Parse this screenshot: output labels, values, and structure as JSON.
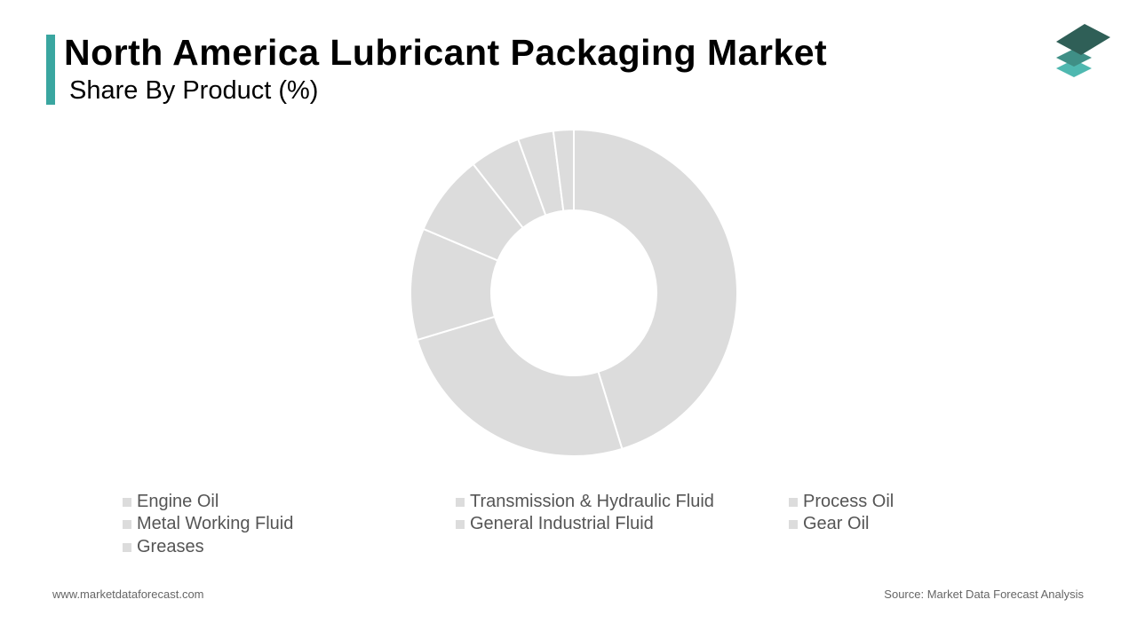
{
  "header": {
    "title": "North America Lubricant Packaging Market",
    "subtitle": "Share By Product (%)"
  },
  "colors": {
    "accent": "#3aa6a0",
    "slice": "#dcdcdc",
    "slice_border": "#ffffff",
    "logo_dark": "#2f5f57",
    "logo_mid": "#3f8f86",
    "logo_light": "#4fb8b0"
  },
  "logo": {
    "icon": "stacked-layers-icon"
  },
  "chart_data": {
    "type": "pie",
    "donut": true,
    "categories": [
      "Engine Oil",
      "Transmission & Hydraulic Fluid",
      "Process Oil",
      "Metal Working Fluid",
      "General Industrial Fluid",
      "Gear Oil",
      "Greases"
    ],
    "values": [
      45,
      25,
      11,
      8,
      5,
      3.5,
      2
    ],
    "legend_position": "bottom"
  },
  "legend": {
    "items": [
      "Engine Oil",
      "Transmission & Hydraulic Fluid",
      "Process Oil",
      "Metal Working Fluid",
      "General Industrial Fluid",
      "Gear Oil",
      "Greases"
    ]
  },
  "footer": {
    "website": "www.marketdataforecast.com",
    "source": "Source: Market Data Forecast Analysis"
  }
}
